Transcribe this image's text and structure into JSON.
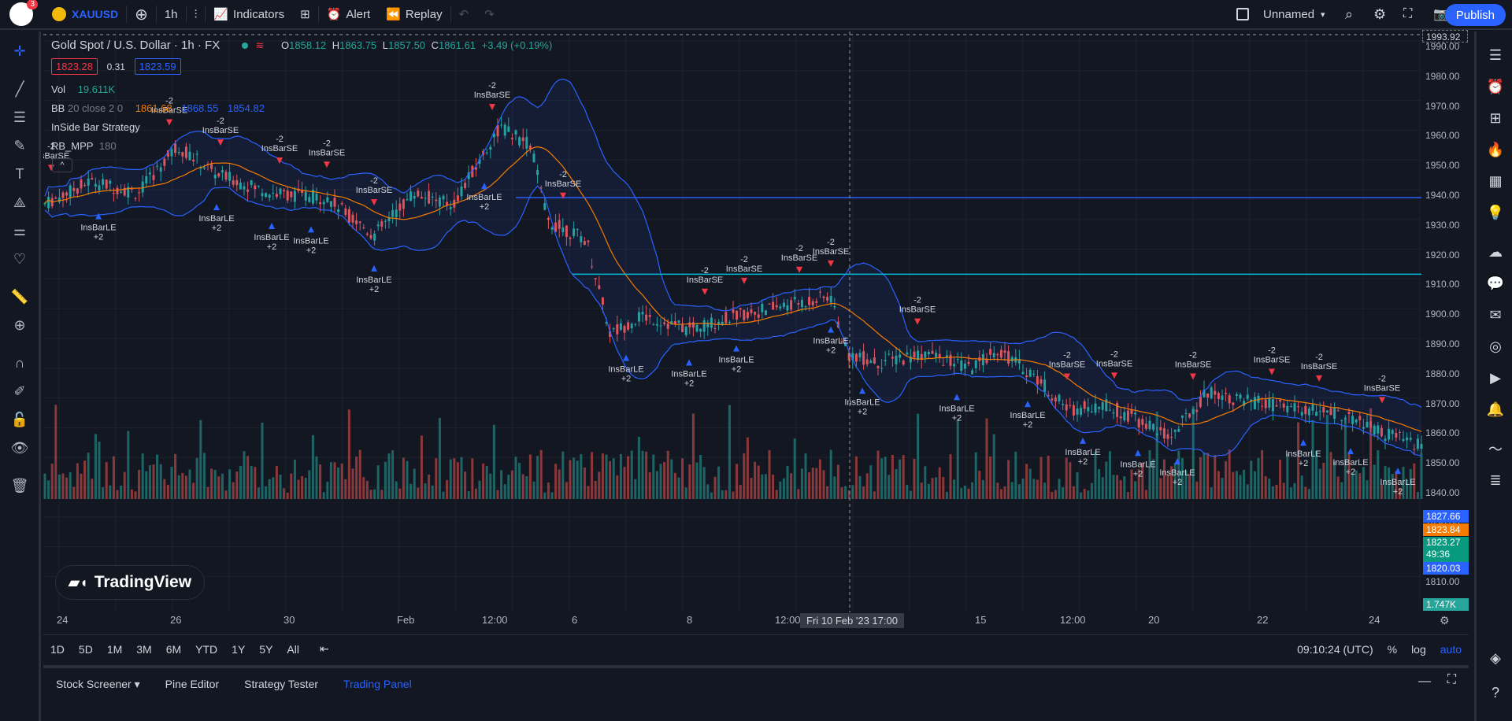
{
  "topbar": {
    "notification_count": "3",
    "symbol": "XAUUSD",
    "interval": "1h",
    "indicators": "Indicators",
    "alert": "Alert",
    "replay": "Replay",
    "layout_name": "Unnamed",
    "publish": "Publish"
  },
  "legend": {
    "title": "Gold Spot / U.S. Dollar · 1h · FX",
    "ohlc_o_label": "O",
    "ohlc_o": "1858.12",
    "ohlc_h_label": "H",
    "ohlc_h": "1863.75",
    "ohlc_l_label": "L",
    "ohlc_l": "1857.50",
    "ohlc_c_label": "C",
    "ohlc_c": "1861.61",
    "change": "+3.49 (+0.19%)",
    "sell_price": "1823.28",
    "spread": "0.31",
    "buy_price": "1823.59",
    "vol_label": "Vol",
    "vol_value": "19.611K",
    "bb_label": "BB",
    "bb_params": "20 close 2 0",
    "bb_basis": "1861.68",
    "bb_upper": "1868.55",
    "bb_lower": "1854.82",
    "strategy_label": "InSide Bar Strategy",
    "rb_label": "RB_MPP",
    "rb_value": "180"
  },
  "price_axis": {
    "labels": [
      "1990.00",
      "1980.00",
      "1970.00",
      "1960.00",
      "1950.00",
      "1940.00",
      "1930.00",
      "1920.00",
      "1910.00",
      "1900.00",
      "1890.00",
      "1880.00",
      "1870.00",
      "1860.00",
      "1850.00",
      "1840.00",
      "1830.00",
      "1820.00",
      "1810.00"
    ],
    "top_tag": "1993.92",
    "tag_upper": "1827.66",
    "tag_basis": "1823.84",
    "tag_last": "1823.27",
    "tag_countdown": "49:36",
    "tag_lower": "1820.03",
    "tag_volume": "1.747K"
  },
  "time_axis": {
    "labels": [
      "24",
      "26",
      "30",
      "Feb",
      "12:00",
      "6",
      "8",
      "12:00",
      "15",
      "12:00",
      "20",
      "22",
      "24"
    ],
    "crosshair": "Fri 10 Feb '23   17:00"
  },
  "strategy_labels": {
    "short_entry": "InsBarSE",
    "long_entry": "InsBarLE",
    "short_qty": "-2",
    "long_qty": "+2"
  },
  "rangebar": {
    "ranges": [
      "1D",
      "5D",
      "1M",
      "3M",
      "6M",
      "YTD",
      "1Y",
      "5Y",
      "All"
    ],
    "clock": "09:10:24 (UTC)",
    "percent": "%",
    "log": "log",
    "auto": "auto"
  },
  "bottom_panel": {
    "tabs": [
      "Stock Screener",
      "Pine Editor",
      "Strategy Tester",
      "Trading Panel"
    ]
  },
  "logo_text": "TradingView",
  "colors": {
    "background": "#131722",
    "accent": "#2962ff",
    "up": "#26a69a",
    "down": "#ef5350",
    "bb_basis": "#f57c00",
    "bb_band": "#2962ff",
    "hline_blue": "#2962ff",
    "hline_teal": "#00bcd4"
  }
}
